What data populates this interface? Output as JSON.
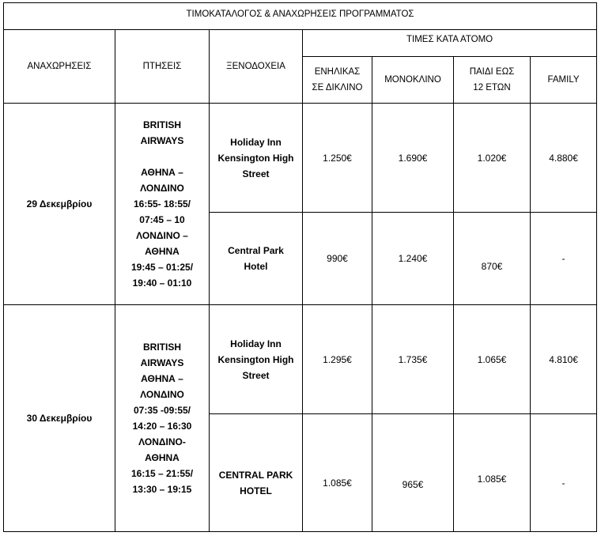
{
  "title": "ΤΙΜΟΚΑΤΑΛΟΓΟΣ & ΑΝΑΧΩΡΗΣΕΙΣ ΠΡΟΓΡΑΜΜΑΤΟΣ",
  "headers": {
    "departures": "ΑΝΑΧΩΡΗΣΕΙΣ",
    "flights": "ΠΤΗΣΕΙΣ",
    "hotels": "ΞΕΝΟΔΟΧΕΙΑ",
    "prices_per_person": "ΤΙΜΕΣ ΚΑΤΑ ΑΤΟΜΟ",
    "adult_double": "ΕΝΗΛΙΚΑΣ\nΣΕ ΔΙΚΛΙΝΟ",
    "single": "ΜΟΝΟΚΛΙΝΟ",
    "child": "ΠΑΙΔΙ ΕΩΣ\n12 ΕΤΩΝ",
    "family": "FAMILY"
  },
  "departures": [
    {
      "date": "29 Δεκεμβρίου",
      "flights": "BRITISH\nAIRWAYS\n\nΑΘΗΝΑ –\nΛΟΝΔΙΝΟ\n16:55- 18:55/\n07:45 – 10\nΛΟΝΔΙΝΟ –\nΑΘΗΝΑ\n19:45 – 01:25/\n19:40 – 01:10",
      "hotels": [
        {
          "name": "Holiday Inn\nKensington High\nStreet",
          "adult_double": "1.250€",
          "single": "1.690€",
          "child": "1.020€",
          "family": "4.880€"
        },
        {
          "name": "Central Park\nHotel",
          "adult_double": "990€",
          "single": "1.240€",
          "child": "870€",
          "family": "-"
        }
      ]
    },
    {
      "date": "30 Δεκεμβρίου",
      "flights": "BRITISH\nAIRWAYS\nΑΘΗΝΑ –\nΛΟΝΔΙΝΟ\n07:35 -09:55/\n14:20 – 16:30\nΛΟΝΔΙΝΟ-\nΑΘΗΝΑ\n16:15 – 21:55/\n13:30 – 19:15",
      "hotels": [
        {
          "name": "Holiday Inn\nKensington High\nStreet",
          "adult_double": "1.295€",
          "single": "1.735€",
          "child": "1.065€",
          "family": "4.810€"
        },
        {
          "name": "CENTRAL PARK\nHOTEL",
          "adult_double": "1.085€",
          "single": "965€",
          "child": "1.085€",
          "family": "-"
        }
      ]
    }
  ]
}
